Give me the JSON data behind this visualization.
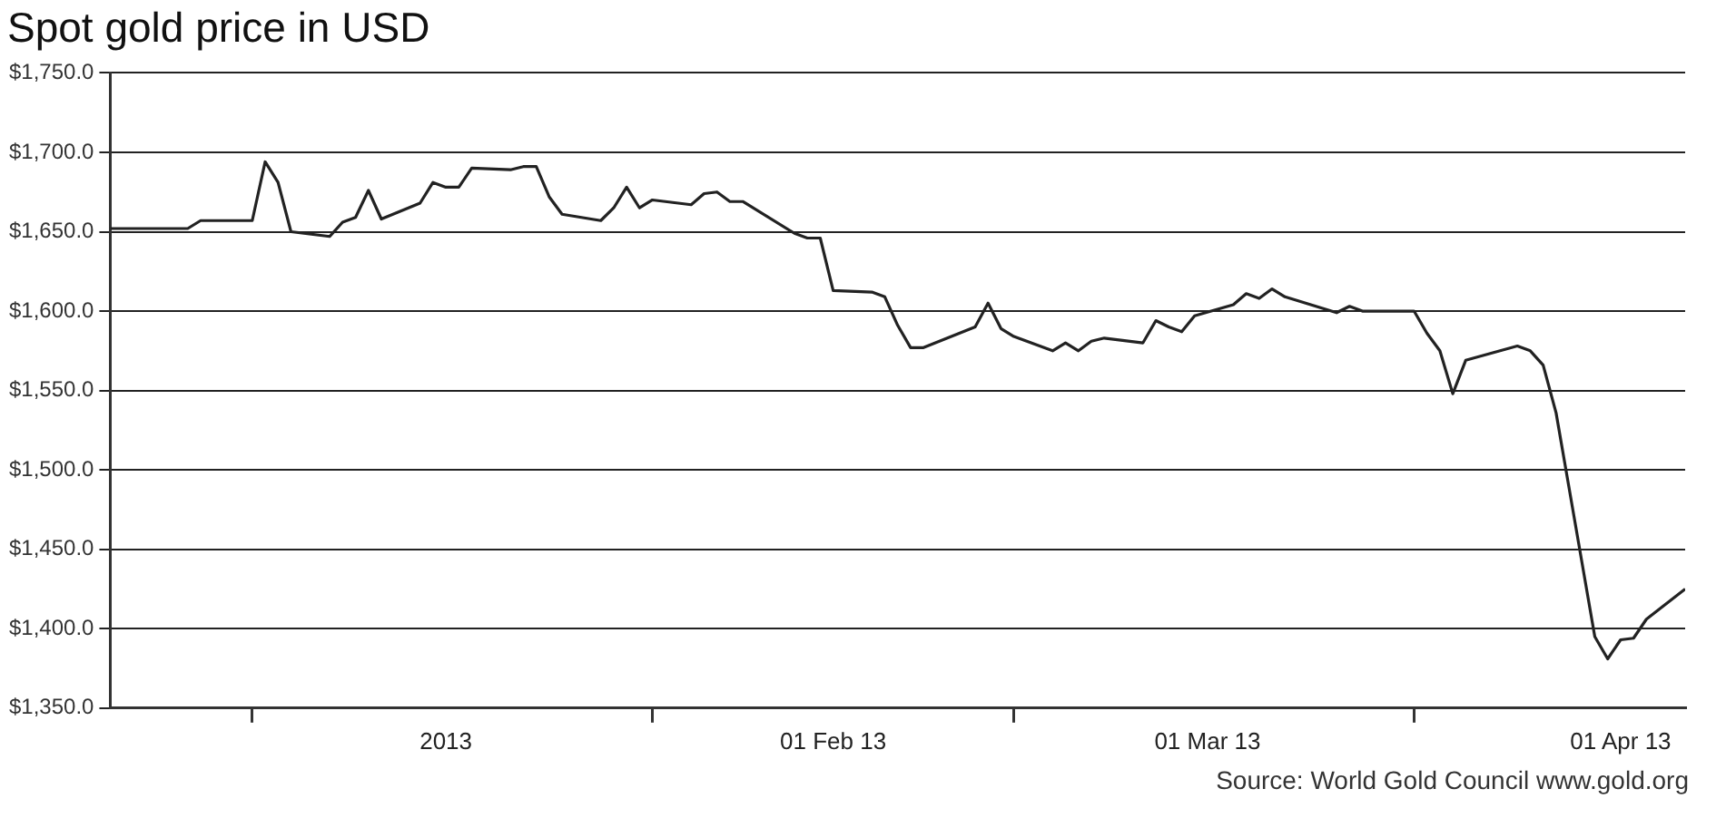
{
  "chart_data": {
    "type": "line",
    "title": "Spot gold price in USD",
    "annotations": [
      "Source: World Gold Council www.gold.org"
    ],
    "x": [
      "2012-12-21",
      "2012-12-27",
      "2012-12-28",
      "2013-01-01",
      "2013-01-02",
      "2013-01-03",
      "2013-01-04",
      "2013-01-07",
      "2013-01-08",
      "2013-01-09",
      "2013-01-10",
      "2013-01-11",
      "2013-01-14",
      "2013-01-15",
      "2013-01-16",
      "2013-01-17",
      "2013-01-18",
      "2013-01-21",
      "2013-01-22",
      "2013-01-23",
      "2013-01-24",
      "2013-01-25",
      "2013-01-28",
      "2013-01-29",
      "2013-01-30",
      "2013-01-31",
      "2013-02-01",
      "2013-02-04",
      "2013-02-05",
      "2013-02-06",
      "2013-02-07",
      "2013-02-08",
      "2013-02-12",
      "2013-02-13",
      "2013-02-14",
      "2013-02-15",
      "2013-02-18",
      "2013-02-19",
      "2013-02-20",
      "2013-02-21",
      "2013-02-22",
      "2013-02-26",
      "2013-02-27",
      "2013-02-28",
      "2013-03-01",
      "2013-03-04",
      "2013-03-05",
      "2013-03-06",
      "2013-03-07",
      "2013-03-08",
      "2013-03-11",
      "2013-03-12",
      "2013-03-13",
      "2013-03-14",
      "2013-03-15",
      "2013-03-18",
      "2013-03-19",
      "2013-03-20",
      "2013-03-21",
      "2013-03-22",
      "2013-03-26",
      "2013-03-27",
      "2013-03-28",
      "2013-04-01",
      "2013-04-02",
      "2013-04-03",
      "2013-04-04",
      "2013-04-05",
      "2013-04-09",
      "2013-04-10",
      "2013-04-11",
      "2013-04-12",
      "2013-04-15",
      "2013-04-16",
      "2013-04-17",
      "2013-04-18",
      "2013-04-19",
      "2013-04-22"
    ],
    "series": [
      {
        "color": "#222222",
        "values": [
          1652,
          1652,
          1657,
          1657,
          1694,
          1681,
          1650,
          1647,
          1656,
          1659,
          1676,
          1658,
          1668,
          1681,
          1678,
          1678,
          1690,
          1689,
          1691,
          1691,
          1672,
          1661,
          1657,
          1665,
          1678,
          1665,
          1670,
          1667,
          1674,
          1675,
          1669,
          1669,
          1649,
          1646,
          1646,
          1613,
          1612,
          1609,
          1591,
          1577,
          1577,
          1590,
          1605,
          1589,
          1584,
          1575,
          1580,
          1575,
          1581,
          1583,
          1580,
          1594,
          1590,
          1587,
          1597,
          1604,
          1611,
          1608,
          1614,
          1609,
          1599,
          1603,
          1600,
          1600,
          1586,
          1575,
          1548,
          1569,
          1578,
          1575,
          1566,
          1536,
          1395,
          1381,
          1393,
          1394,
          1406,
          1425
        ]
      }
    ],
    "xlim": [
      "2012-12-21",
      "2013-04-22"
    ],
    "xticks": [
      {
        "value": "2013-01-01",
        "label": null
      },
      {
        "value": "2013-01-16",
        "label": "2013"
      },
      {
        "value": "2013-02-01",
        "label": null
      },
      {
        "value": "2013-02-15",
        "label": "01 Feb 13"
      },
      {
        "value": "2013-03-01",
        "label": null
      },
      {
        "value": "2013-03-16",
        "label": "01 Mar 13"
      },
      {
        "value": "2013-04-01",
        "label": null
      },
      {
        "value": "2013-04-17",
        "label": "01 Apr 13"
      }
    ],
    "ylim": [
      1350,
      1750
    ],
    "yticks": [
      {
        "value": 1350,
        "label": "$1,350.0"
      },
      {
        "value": 1400,
        "label": "$1,400.0"
      },
      {
        "value": 1450,
        "label": "$1,450.0"
      },
      {
        "value": 1500,
        "label": "$1,500.0"
      },
      {
        "value": 1550,
        "label": "$1,550.0"
      },
      {
        "value": 1600,
        "label": "$1,600.0"
      },
      {
        "value": 1650,
        "label": "$1,650.0"
      },
      {
        "value": 1700,
        "label": "$1,700.0"
      },
      {
        "value": 1750,
        "label": "$1,750.0"
      }
    ],
    "grid": "y",
    "marker": "none",
    "line_style": "solid"
  }
}
